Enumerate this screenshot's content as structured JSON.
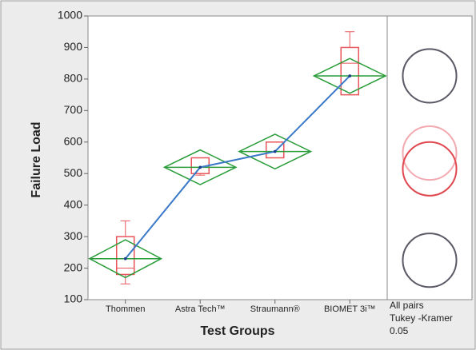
{
  "chart_data": {
    "type": "oneway",
    "xlabel": "Test Groups",
    "ylabel": "Failure Load",
    "categories": [
      "Thommen",
      "Astra Tech™",
      "Straumann®",
      "BIOMET 3i™"
    ],
    "means": [
      230,
      520,
      570,
      810
    ],
    "ci_half_width": [
      60,
      55,
      55,
      55
    ],
    "boxes": [
      {
        "min": 150,
        "q1": 180,
        "median": 200,
        "q3": 300,
        "max": 350
      },
      {
        "min": 495,
        "q1": 500,
        "median": 520,
        "q3": 550,
        "max": 550
      },
      {
        "min": 550,
        "q1": 550,
        "median": 570,
        "q3": 600,
        "max": 600
      },
      {
        "min": 750,
        "q1": 750,
        "median": 850,
        "q3": 900,
        "max": 950
      }
    ],
    "circles": [
      {
        "center": 810,
        "radius": 85,
        "color": "#5a5a66"
      },
      {
        "center": 565,
        "radius": 85,
        "color": "#f2a9b0"
      },
      {
        "center": 515,
        "radius": 85,
        "color": "#e0474f"
      },
      {
        "center": 225,
        "radius": 85,
        "color": "#5a5a66"
      }
    ],
    "panel_text": [
      "All pairs",
      "Tukey -Kramer",
      "0.05"
    ],
    "box_color": "#e8555a",
    "diamond_color": "#2a9d3a",
    "line_color": "#3a78c8",
    "ylim": [
      100,
      1000
    ],
    "yticks": [
      100,
      200,
      300,
      400,
      500,
      600,
      700,
      800,
      900,
      1000
    ]
  }
}
